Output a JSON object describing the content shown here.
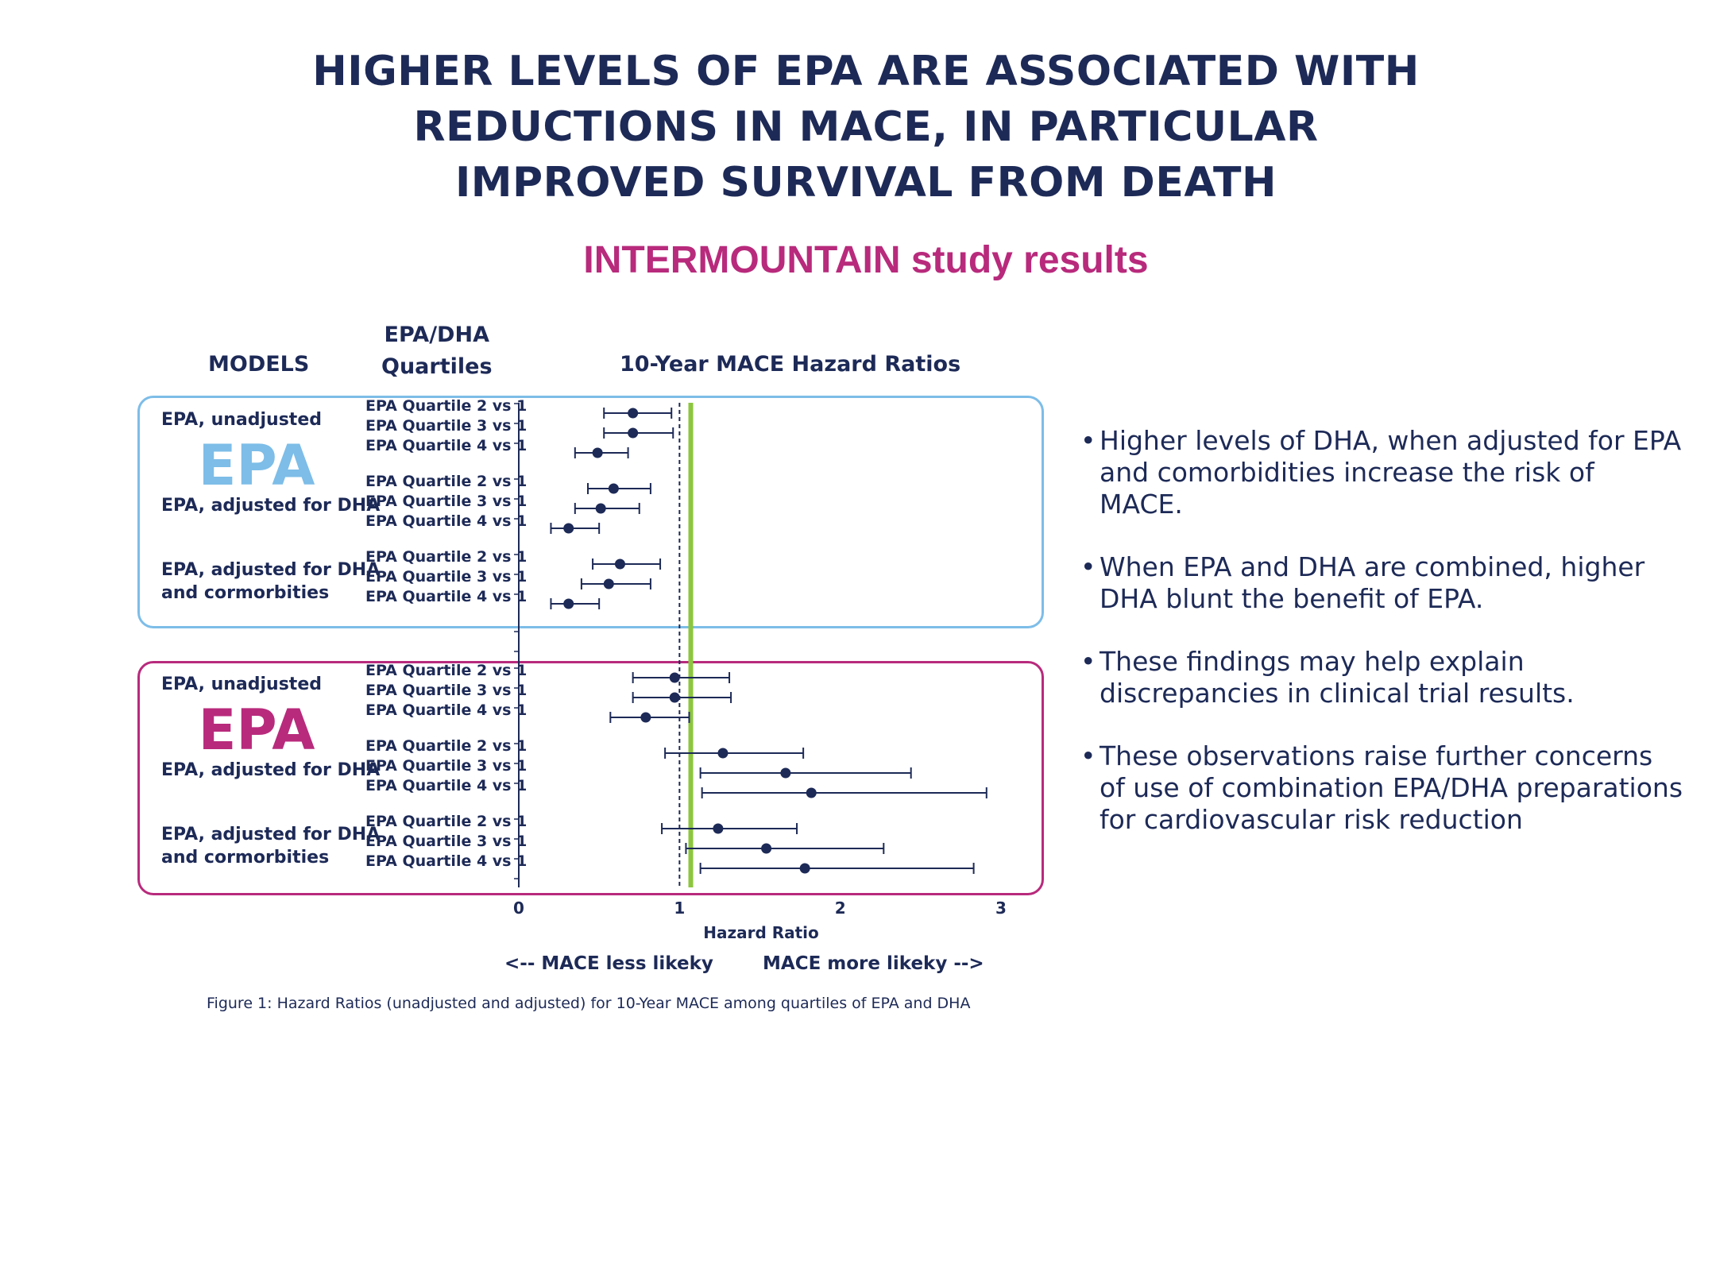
{
  "header": {
    "title_lines": [
      "HIGHER LEVELS OF EPA ARE ASSOCIATED WITH",
      "REDUCTIONS IN MACE, IN PARTICULAR",
      "IMPROVED SURVIVAL FROM DEATH"
    ],
    "subtitle": "INTERMOUNTAIN study results"
  },
  "columns": {
    "models": "MODELS",
    "quartiles_line1": "EPA/DHA",
    "quartiles_line2": "Quartiles",
    "hazard": "10-Year MACE Hazard Ratios"
  },
  "groups": [
    {
      "big_label": "EPA",
      "color": "#7dbde8",
      "models": [
        {
          "label_lines": [
            "EPA, unadjusted"
          ]
        },
        {
          "label_lines": [
            "EPA, adjusted for DHA"
          ]
        },
        {
          "label_lines": [
            "EPA, adjusted for DHA",
            "and cormorbities"
          ]
        }
      ]
    },
    {
      "big_label": "EPA",
      "color": "#b82a7c",
      "models": [
        {
          "label_lines": [
            "EPA, unadjusted"
          ]
        },
        {
          "label_lines": [
            "EPA, adjusted for DHA"
          ]
        },
        {
          "label_lines": [
            "EPA, adjusted for DHA",
            "and cormorbities"
          ]
        }
      ]
    }
  ],
  "bullets": [
    "Higher levels of DHA, when adjusted for EPA and comorbidities increase the risk of MACE.",
    "When EPA and DHA are combined, higher DHA blunt the benefit of EPA.",
    "These findings may help explain discrepancies in clinical trial results.",
    "These observations raise further concerns of use of combination EPA/DHA preparations for cardiovascular risk reduction"
  ],
  "direction_notes": {
    "left": "<-- MACE less likeky",
    "right": "MACE more likeky -->"
  },
  "caption": "Figure 1: Hazard Ratios (unadjusted and adjusted) for 10-Year MACE among quartiles of EPA and DHA",
  "colors": {
    "navy": "#1d2a57",
    "green_line": "#8cc63f",
    "blue_box": "#7dbde8",
    "magenta_box": "#b82a7c"
  },
  "chart_data": {
    "type": "forest",
    "xlabel": "Hazard Ratio",
    "title": "10-Year MACE Hazard Ratios",
    "xlim": [
      0,
      3
    ],
    "x_ticks": [
      "0",
      "1",
      "2",
      "3"
    ],
    "reference_line_dashed": 1.0,
    "reference_line_green": 1.07,
    "rows": [
      {
        "label": "EPA Quartile 2 vs 1",
        "hr": 0.71,
        "lo": 0.53,
        "hi": 0.95
      },
      {
        "label": "EPA Quartile 3 vs 1",
        "hr": 0.71,
        "lo": 0.53,
        "hi": 0.96
      },
      {
        "label": "EPA Quartile 4 vs 1",
        "hr": 0.49,
        "lo": 0.35,
        "hi": 0.68
      },
      {
        "label": "EPA Quartile 2 vs 1",
        "hr": 0.59,
        "lo": 0.43,
        "hi": 0.82
      },
      {
        "label": "EPA Quartile 3 vs 1",
        "hr": 0.51,
        "lo": 0.35,
        "hi": 0.75
      },
      {
        "label": "EPA Quartile 4 vs 1",
        "hr": 0.31,
        "lo": 0.2,
        "hi": 0.5
      },
      {
        "label": "EPA Quartile 2 vs 1",
        "hr": 0.63,
        "lo": 0.46,
        "hi": 0.88
      },
      {
        "label": "EPA Quartile 3 vs 1",
        "hr": 0.56,
        "lo": 0.39,
        "hi": 0.82
      },
      {
        "label": "EPA Quartile 4 vs 1",
        "hr": 0.31,
        "lo": 0.2,
        "hi": 0.5
      },
      {
        "label": "EPA Quartile 2 vs 1",
        "hr": 0.97,
        "lo": 0.71,
        "hi": 1.31
      },
      {
        "label": "EPA Quartile 3 vs 1",
        "hr": 0.97,
        "lo": 0.71,
        "hi": 1.32
      },
      {
        "label": "EPA Quartile 4 vs 1",
        "hr": 0.79,
        "lo": 0.57,
        "hi": 1.06
      },
      {
        "label": "EPA Quartile 2 vs 1",
        "hr": 1.27,
        "lo": 0.91,
        "hi": 1.77
      },
      {
        "label": "EPA Quartile 3 vs 1",
        "hr": 1.66,
        "lo": 1.13,
        "hi": 2.44
      },
      {
        "label": "EPA Quartile 4 vs 1",
        "hr": 1.82,
        "lo": 1.14,
        "hi": 2.91
      },
      {
        "label": "EPA Quartile 2 vs 1",
        "hr": 1.24,
        "lo": 0.89,
        "hi": 1.73
      },
      {
        "label": "EPA Quartile 3 vs 1",
        "hr": 1.54,
        "lo": 1.04,
        "hi": 2.27
      },
      {
        "label": "EPA Quartile 4 vs 1",
        "hr": 1.78,
        "lo": 1.13,
        "hi": 2.83
      }
    ]
  }
}
